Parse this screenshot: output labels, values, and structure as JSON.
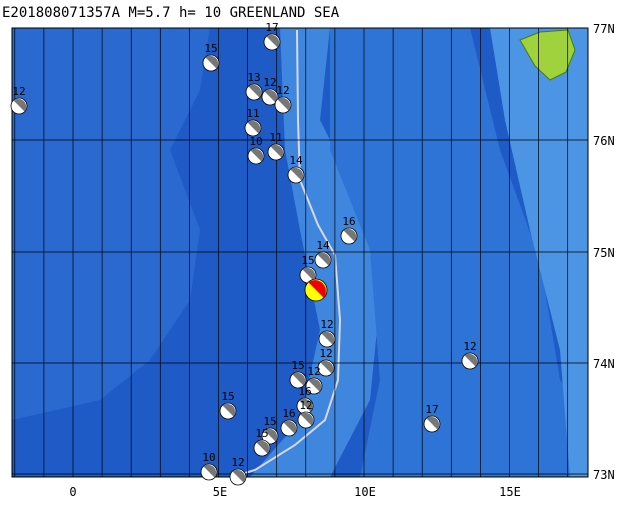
{
  "header": {
    "title": "E201808071357A  M=5.7  h= 10  GREENLAND SEA"
  },
  "lat_labels": [
    "77N",
    "76N",
    "75N",
    "74N",
    "73N"
  ],
  "lon_labels": [
    "0",
    "5E",
    "10E",
    "15E"
  ],
  "events": [
    "12",
    "15",
    "17",
    "13",
    "12",
    "12",
    "11",
    "11",
    "10",
    "14",
    "16",
    "14",
    "15",
    "12",
    "12",
    "15",
    "12",
    "16",
    "12",
    "15",
    "16",
    "15",
    "15",
    "12",
    "17",
    "10",
    "12"
  ]
}
